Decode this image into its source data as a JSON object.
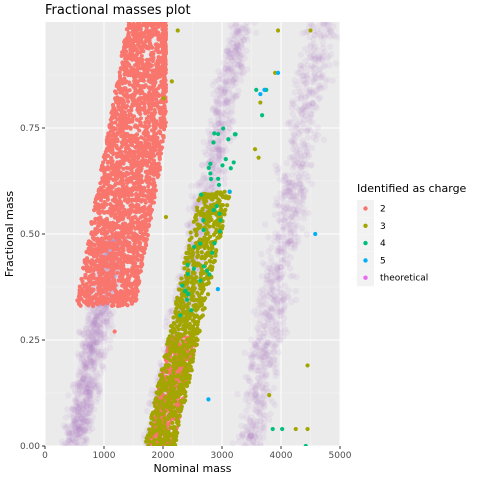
{
  "chart_data": {
    "type": "scatter",
    "title": "Fractional masses plot",
    "xlabel": "Nominal mass",
    "ylabel": "Fractional mass",
    "xlim": [
      0,
      5000
    ],
    "ylim": [
      0,
      1
    ],
    "x_ticks": [
      0,
      1000,
      2000,
      3000,
      4000,
      5000
    ],
    "x_tick_labels": [
      "0",
      "1000",
      "2000",
      "3000",
      "4000",
      "5000"
    ],
    "y_ticks": [
      0,
      0.25,
      0.5,
      0.75
    ],
    "y_tick_labels": [
      "0.00",
      "0.25",
      "0.50",
      "0.75"
    ],
    "grid": true,
    "legend_position": "right",
    "legend_title": "Identified as charge",
    "series": [
      {
        "name": "2",
        "color": "#F8766D",
        "bands": [
          {
            "x_at_y0": 600,
            "x_at_y1": 1900,
            "width": 500,
            "y_min": 0.33,
            "y_max": 1.0,
            "x_max": 2050,
            "count": 2600
          },
          {
            "x_at_y0": 1950,
            "x_at_y1": 3500,
            "width": 230,
            "y_min": 0.0,
            "y_max": 0.26,
            "count": 450
          }
        ],
        "points": [
          [
            1180,
            0.27
          ],
          [
            1520,
            0.5
          ]
        ]
      },
      {
        "name": "3",
        "color": "#A3A500",
        "bands": [
          {
            "x_at_y0": 1950,
            "x_at_y1": 3500,
            "width": 260,
            "y_min": 0.0,
            "y_max": 0.6,
            "count": 900
          }
        ],
        "points": [
          [
            2010,
            0.82
          ],
          [
            2150,
            0.86
          ],
          [
            2250,
            0.98
          ],
          [
            3560,
            0.7
          ],
          [
            3650,
            0.81
          ],
          [
            3900,
            0.88
          ],
          [
            3950,
            0.98
          ],
          [
            4500,
            0.98
          ],
          [
            3620,
            0.68
          ],
          [
            4450,
            0.19
          ],
          [
            3800,
            0.12
          ],
          [
            4250,
            0.04
          ],
          [
            4450,
            0.04
          ],
          [
            1900,
            0.04
          ],
          [
            2050,
            0.54
          ]
        ]
      },
      {
        "name": "4",
        "color": "#00BF7D",
        "bands": [
          {
            "x_at_y0": 1950,
            "x_at_y1": 3500,
            "width": 230,
            "y_min": 0.28,
            "y_max": 0.75,
            "count": 45
          }
        ],
        "points": [
          [
            3580,
            0.84
          ],
          [
            3750,
            0.84
          ],
          [
            3680,
            0.78
          ],
          [
            3860,
            0.04
          ],
          [
            4020,
            0.04
          ],
          [
            4420,
            0.0
          ]
        ]
      },
      {
        "name": "5",
        "color": "#00B0F6",
        "bands": [],
        "points": [
          [
            3720,
            0.84
          ],
          [
            3950,
            0.88
          ],
          [
            4580,
            0.5
          ],
          [
            2930,
            0.37
          ],
          [
            2770,
            0.11
          ],
          [
            3130,
            0.6
          ],
          [
            3650,
            0.83
          ]
        ]
      },
      {
        "name": "theoretical",
        "color": "#E76BF3",
        "bands": [
          {
            "x_at_y0": 500,
            "x_at_y1": 1860,
            "width": 330,
            "y_min": 0.0,
            "y_max": 0.5,
            "count": 900
          },
          {
            "x_at_y0": 1850,
            "x_at_y1": 3350,
            "width": 330,
            "y_min": 0.0,
            "y_max": 1.0,
            "count": 1000
          },
          {
            "x_at_y0": 3450,
            "x_at_y1": 4700,
            "width": 430,
            "y_min": 0.0,
            "y_max": 1.0,
            "count": 900
          }
        ],
        "points": []
      }
    ]
  }
}
